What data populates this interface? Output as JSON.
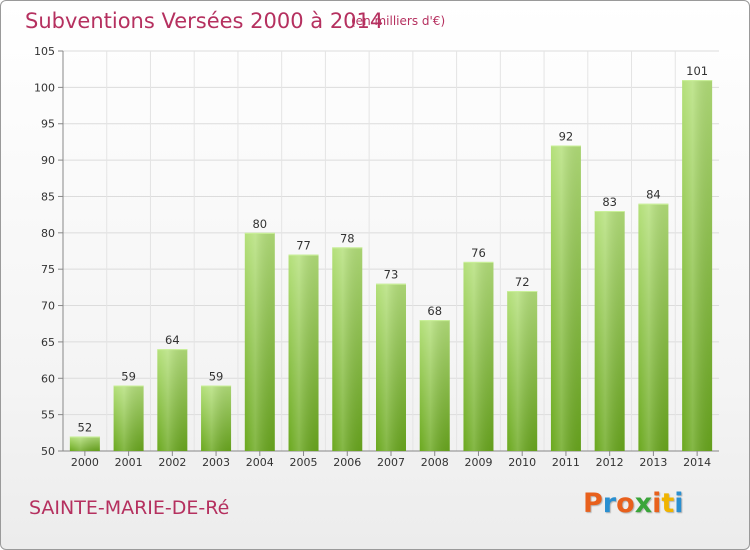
{
  "header": {
    "title": "Subventions Versées 2000 à 2014",
    "subtitle": "(en milliers d'€)"
  },
  "footer": {
    "place": "SAINTE-MARIE-DE-Ré",
    "logo_text": "Proxiti",
    "logo_colors": [
      "#e8601c",
      "#2a8fd0",
      "#e8601c",
      "#3aa53a",
      "#e8601c",
      "#f0b400",
      "#2a8fd0"
    ]
  },
  "chart_data": {
    "type": "bar",
    "title": "Subventions Versées 2000 à 2014",
    "subtitle": "(en milliers d'€)",
    "categories": [
      "2000",
      "2001",
      "2002",
      "2003",
      "2004",
      "2005",
      "2006",
      "2007",
      "2008",
      "2009",
      "2010",
      "2011",
      "2012",
      "2013",
      "2014"
    ],
    "values": [
      52,
      59,
      64,
      59,
      80,
      77,
      78,
      73,
      68,
      76,
      72,
      92,
      83,
      84,
      101
    ],
    "ylim": [
      50,
      105
    ],
    "yticks": [
      50,
      55,
      60,
      65,
      70,
      75,
      80,
      85,
      90,
      95,
      100,
      105
    ],
    "grid": true,
    "bar_color_light": "#b4e07a",
    "bar_color_dark": "#6aa81e"
  }
}
